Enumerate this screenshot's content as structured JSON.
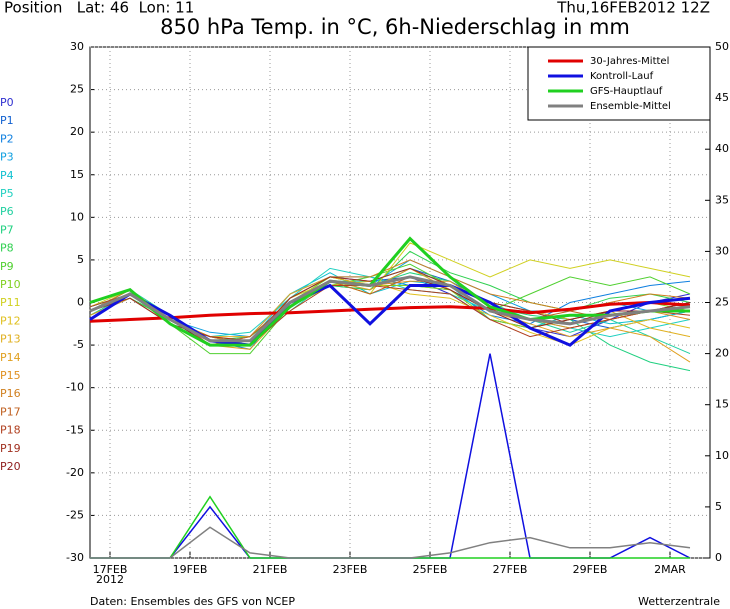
{
  "chart_data": {
    "type": "line",
    "header_left": "Position   Lat: 46  Lon: 11",
    "header_right": "Thu,16FEB2012 12Z",
    "title": "850 hPa Temp. in °C, 6h-Niederschlag in mm",
    "year_label": "2012",
    "footer_left": "Daten: Ensembles des GFS von NCEP",
    "footer_right": "Wetterzentrale",
    "x": [
      16.5,
      17.5,
      18.5,
      19.5,
      20.5,
      21.5,
      22.5,
      23.5,
      24.5,
      25.5,
      26.5,
      27.5,
      28.5,
      29.5,
      30.5,
      31.5
    ],
    "xlim": [
      16.5,
      32
    ],
    "xticks": [
      {
        "value": 17,
        "label": "17FEB"
      },
      {
        "value": 19,
        "label": "19FEB"
      },
      {
        "value": 21,
        "label": "21FEB"
      },
      {
        "value": 23,
        "label": "23FEB"
      },
      {
        "value": 25,
        "label": "25FEB"
      },
      {
        "value": 27,
        "label": "27FEB"
      },
      {
        "value": 29,
        "label": "29FEB"
      },
      {
        "value": 31,
        "label": "2MAR"
      }
    ],
    "ylim": [
      -30,
      30
    ],
    "yticks": [
      -30,
      -25,
      -20,
      -15,
      -10,
      -5,
      0,
      5,
      10,
      15,
      20,
      25,
      30
    ],
    "y2lim": [
      0,
      50
    ],
    "y2ticks": [
      0,
      5,
      10,
      15,
      20,
      25,
      30,
      35,
      40,
      45,
      50
    ],
    "grid": true,
    "legend": "top-right",
    "series": [
      {
        "name": "30-Jahres-Mittel",
        "color": "#e00000",
        "values": [
          -2.2,
          -2,
          -1.8,
          -1.5,
          -1.3,
          -1.2,
          -1,
          -0.8,
          -0.6,
          -0.5,
          -0.7,
          -1.2,
          -0.8,
          -0.2,
          0,
          -0.3
        ]
      },
      {
        "name": "Kontroll-Lauf",
        "color": "#1010e0",
        "values": [
          -2,
          1,
          -1.5,
          -4.5,
          -5,
          0,
          2,
          -2.5,
          2,
          2,
          0,
          -3,
          -5,
          -1,
          0,
          0.5
        ],
        "precip": [
          0,
          0,
          0,
          5,
          0,
          0,
          0,
          0,
          0,
          0,
          20,
          0,
          0,
          0,
          2,
          0
        ]
      },
      {
        "name": "GFS-Hauptlauf",
        "color": "#20d020",
        "values": [
          0,
          1.5,
          -2.5,
          -5,
          -5,
          -0.5,
          2.5,
          2,
          7.5,
          3,
          -0.5,
          -2,
          -1.5,
          -1.5,
          -1,
          -1
        ],
        "precip": [
          0,
          0,
          0,
          6,
          0,
          0,
          0,
          0,
          0,
          0,
          0,
          0,
          0,
          0,
          0,
          0
        ]
      },
      {
        "name": "Ensemble-Mittel",
        "color": "#808080",
        "values": [
          -1,
          1,
          -2,
          -4.5,
          -4.5,
          0,
          2.5,
          2,
          3,
          2,
          -1,
          -2,
          -2.5,
          -1.5,
          -1,
          -0.5
        ],
        "precip": [
          0,
          0,
          0,
          3,
          0.5,
          0,
          0,
          0,
          0,
          0.5,
          1.5,
          2,
          1,
          1,
          1.5,
          1
        ]
      }
    ],
    "members": [
      {
        "name": "P0",
        "color": "#3030d0",
        "values": [
          -1,
          1.5,
          -2,
          -5,
          -4,
          1,
          3,
          2.5,
          3,
          1,
          -2,
          -3,
          -4,
          -2,
          0,
          1
        ]
      },
      {
        "name": "P1",
        "color": "#1060d0",
        "values": [
          -1.5,
          0.5,
          -2.5,
          -4,
          -5,
          -0.5,
          2,
          1.5,
          4,
          2.5,
          0,
          -1,
          -2,
          -3,
          -2,
          -1
        ]
      },
      {
        "name": "P2",
        "color": "#1080e0",
        "values": [
          -0.5,
          1,
          -1.5,
          -4.5,
          -5.5,
          0.5,
          3,
          3,
          2,
          1.5,
          -1.5,
          -2.5,
          0,
          1,
          2,
          2.5
        ]
      },
      {
        "name": "P3",
        "color": "#10a0e0",
        "values": [
          -1,
          1.5,
          -2,
          -3.5,
          -4,
          0,
          2,
          2,
          5,
          3,
          1,
          -1,
          -1,
          0,
          -1,
          0
        ]
      },
      {
        "name": "P4",
        "color": "#10c0d0",
        "values": [
          -1,
          0.5,
          -2,
          -5,
          -4.5,
          1,
          3.5,
          1,
          2.5,
          2,
          -2,
          -3,
          -1.5,
          -2.5,
          -2,
          -1
        ]
      },
      {
        "name": "P5",
        "color": "#20d0c0",
        "values": [
          -0.5,
          1,
          -2.5,
          -4,
          -3.5,
          0.5,
          4,
          3,
          1.5,
          1,
          -1,
          -2,
          -3,
          -4,
          -3,
          -2
        ]
      },
      {
        "name": "P6",
        "color": "#20d0a0",
        "values": [
          -1,
          1.5,
          -1.5,
          -5,
          -5,
          -1,
          2.5,
          2.5,
          4,
          2,
          0,
          -2,
          -3.5,
          -2,
          -4,
          -6
        ]
      },
      {
        "name": "P7",
        "color": "#20d080",
        "values": [
          -1.5,
          1,
          -2,
          -4,
          -5,
          0,
          3,
          2,
          3.5,
          2.5,
          -0.5,
          -1.5,
          -2,
          -5,
          -7,
          -8
        ]
      },
      {
        "name": "P8",
        "color": "#30d050",
        "values": [
          -1,
          0.5,
          -2,
          -4.5,
          -4,
          -0.5,
          2,
          1.5,
          6,
          3.5,
          2,
          0,
          -1,
          0.5,
          1,
          0
        ]
      },
      {
        "name": "P9",
        "color": "#50d030",
        "values": [
          -1,
          1,
          -2.5,
          -6,
          -6,
          -0.5,
          2,
          3,
          4.5,
          2,
          -1,
          1,
          3,
          2,
          3,
          1
        ]
      },
      {
        "name": "P10",
        "color": "#80d020",
        "values": [
          -1,
          1,
          -2,
          -4.5,
          -5,
          0,
          3,
          2,
          2,
          1.5,
          -2,
          -3,
          -2,
          -1,
          0,
          -1
        ]
      },
      {
        "name": "P11",
        "color": "#d0d020",
        "values": [
          -0.5,
          1.5,
          -2,
          -4,
          -4.5,
          0.5,
          2.5,
          1,
          7,
          5,
          3,
          5,
          4,
          5,
          4,
          3
        ]
      },
      {
        "name": "P12",
        "color": "#e0c020",
        "values": [
          -1,
          1,
          -1.5,
          -5,
          -5,
          0,
          2,
          2.5,
          1,
          0.5,
          -1.5,
          -3.5,
          -5,
          -3,
          -2,
          -3
        ]
      },
      {
        "name": "P13",
        "color": "#e0b020",
        "values": [
          -1,
          1.5,
          -2,
          -4,
          -4,
          1,
          3,
          2,
          3,
          2,
          0,
          -1,
          -2,
          -1,
          -3,
          -4
        ]
      },
      {
        "name": "P14",
        "color": "#e0a020",
        "values": [
          -1.5,
          0.5,
          -2.5,
          -5,
          -5.5,
          -0.5,
          2.5,
          1.5,
          4,
          1.5,
          -1,
          -2.5,
          -4,
          -3,
          -4,
          -7
        ]
      },
      {
        "name": "P15",
        "color": "#e09020",
        "values": [
          -1,
          1,
          -2,
          -4.5,
          -4.5,
          0,
          2,
          2,
          2.5,
          2.5,
          -0.5,
          -2,
          -3,
          -2,
          -1,
          -2
        ]
      },
      {
        "name": "P16",
        "color": "#d08020",
        "values": [
          -1,
          1.5,
          -2,
          -4,
          -5,
          0.5,
          3,
          3,
          5,
          3,
          1,
          0,
          -1,
          0,
          1,
          0.5
        ]
      },
      {
        "name": "P17",
        "color": "#c06020",
        "values": [
          -1,
          1,
          -1.5,
          -5,
          -4,
          0,
          2.5,
          1,
          3,
          2,
          -1,
          -2,
          -1,
          -2,
          -1,
          0
        ]
      },
      {
        "name": "P18",
        "color": "#b04020",
        "values": [
          -0.5,
          1,
          -2,
          -4.5,
          -5,
          -1,
          2,
          2,
          1.5,
          1,
          -2,
          -4,
          -3,
          -2,
          -1,
          -1.5
        ]
      },
      {
        "name": "P19",
        "color": "#a03020",
        "values": [
          -1,
          0.5,
          -2.5,
          -4,
          -4.5,
          0.5,
          3,
          2.5,
          4,
          2,
          0,
          -1,
          -2.5,
          -1,
          0,
          -0.5
        ]
      },
      {
        "name": "P20",
        "color": "#902020",
        "values": [
          -1,
          1,
          -2,
          -5,
          -5,
          0,
          2.5,
          2,
          3,
          1.5,
          -1,
          -3,
          -2,
          -1,
          -1,
          0
        ]
      }
    ]
  }
}
